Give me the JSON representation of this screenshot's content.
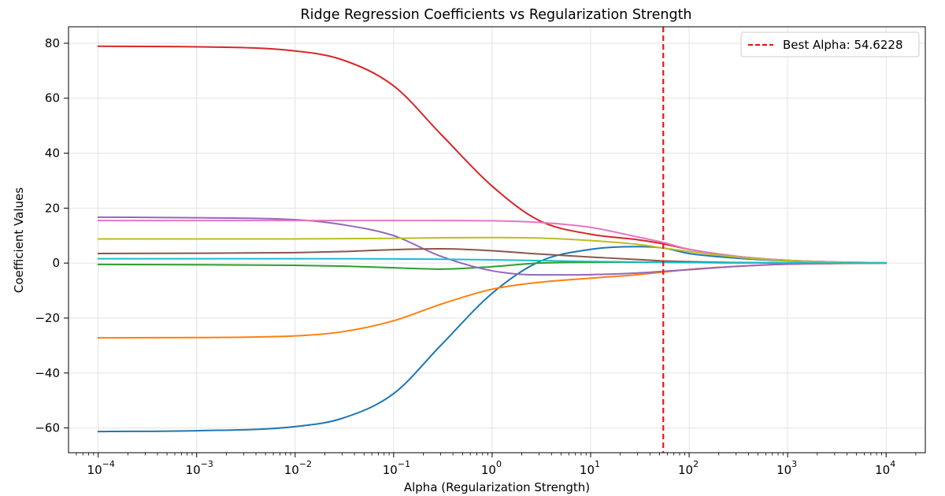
{
  "chart_data": {
    "type": "line",
    "title": "Ridge Regression Coefficients vs Regularization Strength",
    "xlabel": "Alpha (Regularization Strength)",
    "ylabel": "Coefficient Values",
    "x_scale": "log",
    "xlim": [
      5e-05,
      25000
    ],
    "ylim": [
      -69,
      86
    ],
    "x_ticks": [
      {
        "value": 0.0001,
        "base": "10",
        "exp": "−4"
      },
      {
        "value": 0.001,
        "base": "10",
        "exp": "−3"
      },
      {
        "value": 0.01,
        "base": "10",
        "exp": "−2"
      },
      {
        "value": 0.1,
        "base": "10",
        "exp": "−1"
      },
      {
        "value": 1,
        "base": "10",
        "exp": "0"
      },
      {
        "value": 10,
        "base": "10",
        "exp": "1"
      },
      {
        "value": 100,
        "base": "10",
        "exp": "2"
      },
      {
        "value": 1000,
        "base": "10",
        "exp": "3"
      },
      {
        "value": 10000,
        "base": "10",
        "exp": "4"
      }
    ],
    "y_ticks": [
      {
        "value": 80,
        "label": "80"
      },
      {
        "value": 60,
        "label": "60"
      },
      {
        "value": 40,
        "label": "40"
      },
      {
        "value": 20,
        "label": "20"
      },
      {
        "value": 0,
        "label": "0"
      },
      {
        "value": -20,
        "label": "−20"
      },
      {
        "value": -40,
        "label": "−40"
      },
      {
        "value": -60,
        "label": "−60"
      }
    ],
    "grid": true,
    "legend_position": "top-right",
    "x": [
      0.0001,
      0.001,
      0.01,
      0.03,
      0.1,
      0.3,
      1,
      3,
      10,
      30,
      54.6228,
      100,
      300,
      1000,
      3000,
      10000
    ],
    "series": [
      {
        "color": "#1f77b4",
        "values": [
          -61.3,
          -61.0,
          -59.5,
          -56.5,
          -47.5,
          -30,
          -11,
          0.5,
          5.0,
          6.0,
          5.5,
          3.5,
          1.8,
          0.8,
          0.3,
          0.1
        ]
      },
      {
        "color": "#ff7f0e",
        "values": [
          -27.2,
          -27.1,
          -26.5,
          -25.0,
          -21.0,
          -15,
          -9.5,
          -7.0,
          -5.5,
          -4.2,
          -3.3,
          -2.3,
          -1.2,
          -0.4,
          -0.15,
          0.05
        ]
      },
      {
        "color": "#2ca02c",
        "values": [
          -0.5,
          -0.6,
          -0.8,
          -1.1,
          -1.7,
          -2.2,
          -1.3,
          0.0,
          0.3,
          0.35,
          0.3,
          0.2,
          0.1,
          0.05,
          0.0,
          0.0
        ]
      },
      {
        "color": "#d62728",
        "values": [
          78.9,
          78.7,
          77.2,
          74.0,
          64.5,
          47,
          28,
          15.5,
          10.5,
          8.5,
          7.0,
          5.0,
          2.5,
          1.0,
          0.4,
          0.1
        ]
      },
      {
        "color": "#9467bd",
        "values": [
          16.7,
          16.5,
          15.8,
          14.0,
          10.0,
          2.5,
          -2.8,
          -4.3,
          -4.2,
          -3.6,
          -3.0,
          -2.4,
          -1.2,
          -0.4,
          -0.1,
          0.0
        ]
      },
      {
        "color": "#8c564b",
        "values": [
          3.5,
          3.6,
          3.8,
          4.2,
          4.9,
          5.2,
          4.5,
          3.3,
          2.2,
          1.3,
          0.8,
          0.5,
          0.2,
          0.1,
          0.0,
          0.0
        ]
      },
      {
        "color": "#e377c2",
        "values": [
          15.5,
          15.5,
          15.5,
          15.5,
          15.5,
          15.5,
          15.4,
          14.8,
          13.0,
          9.5,
          7.5,
          5.0,
          2.5,
          1.0,
          0.4,
          0.1
        ]
      },
      {
        "color": "#bcbd22",
        "values": [
          8.8,
          8.8,
          8.8,
          8.9,
          9.0,
          9.2,
          9.3,
          9.1,
          8.2,
          6.8,
          5.5,
          4.2,
          2.2,
          0.9,
          0.3,
          0.1
        ]
      },
      {
        "color": "#17becf",
        "values": [
          1.6,
          1.6,
          1.6,
          1.6,
          1.5,
          1.4,
          1.2,
          0.9,
          0.6,
          0.4,
          0.3,
          0.2,
          0.1,
          0.05,
          0.0,
          0.0
        ]
      }
    ],
    "best_alpha": {
      "value": 54.6228,
      "color": "#e41a1c",
      "legend_label": "Best Alpha: 54.6228"
    }
  }
}
